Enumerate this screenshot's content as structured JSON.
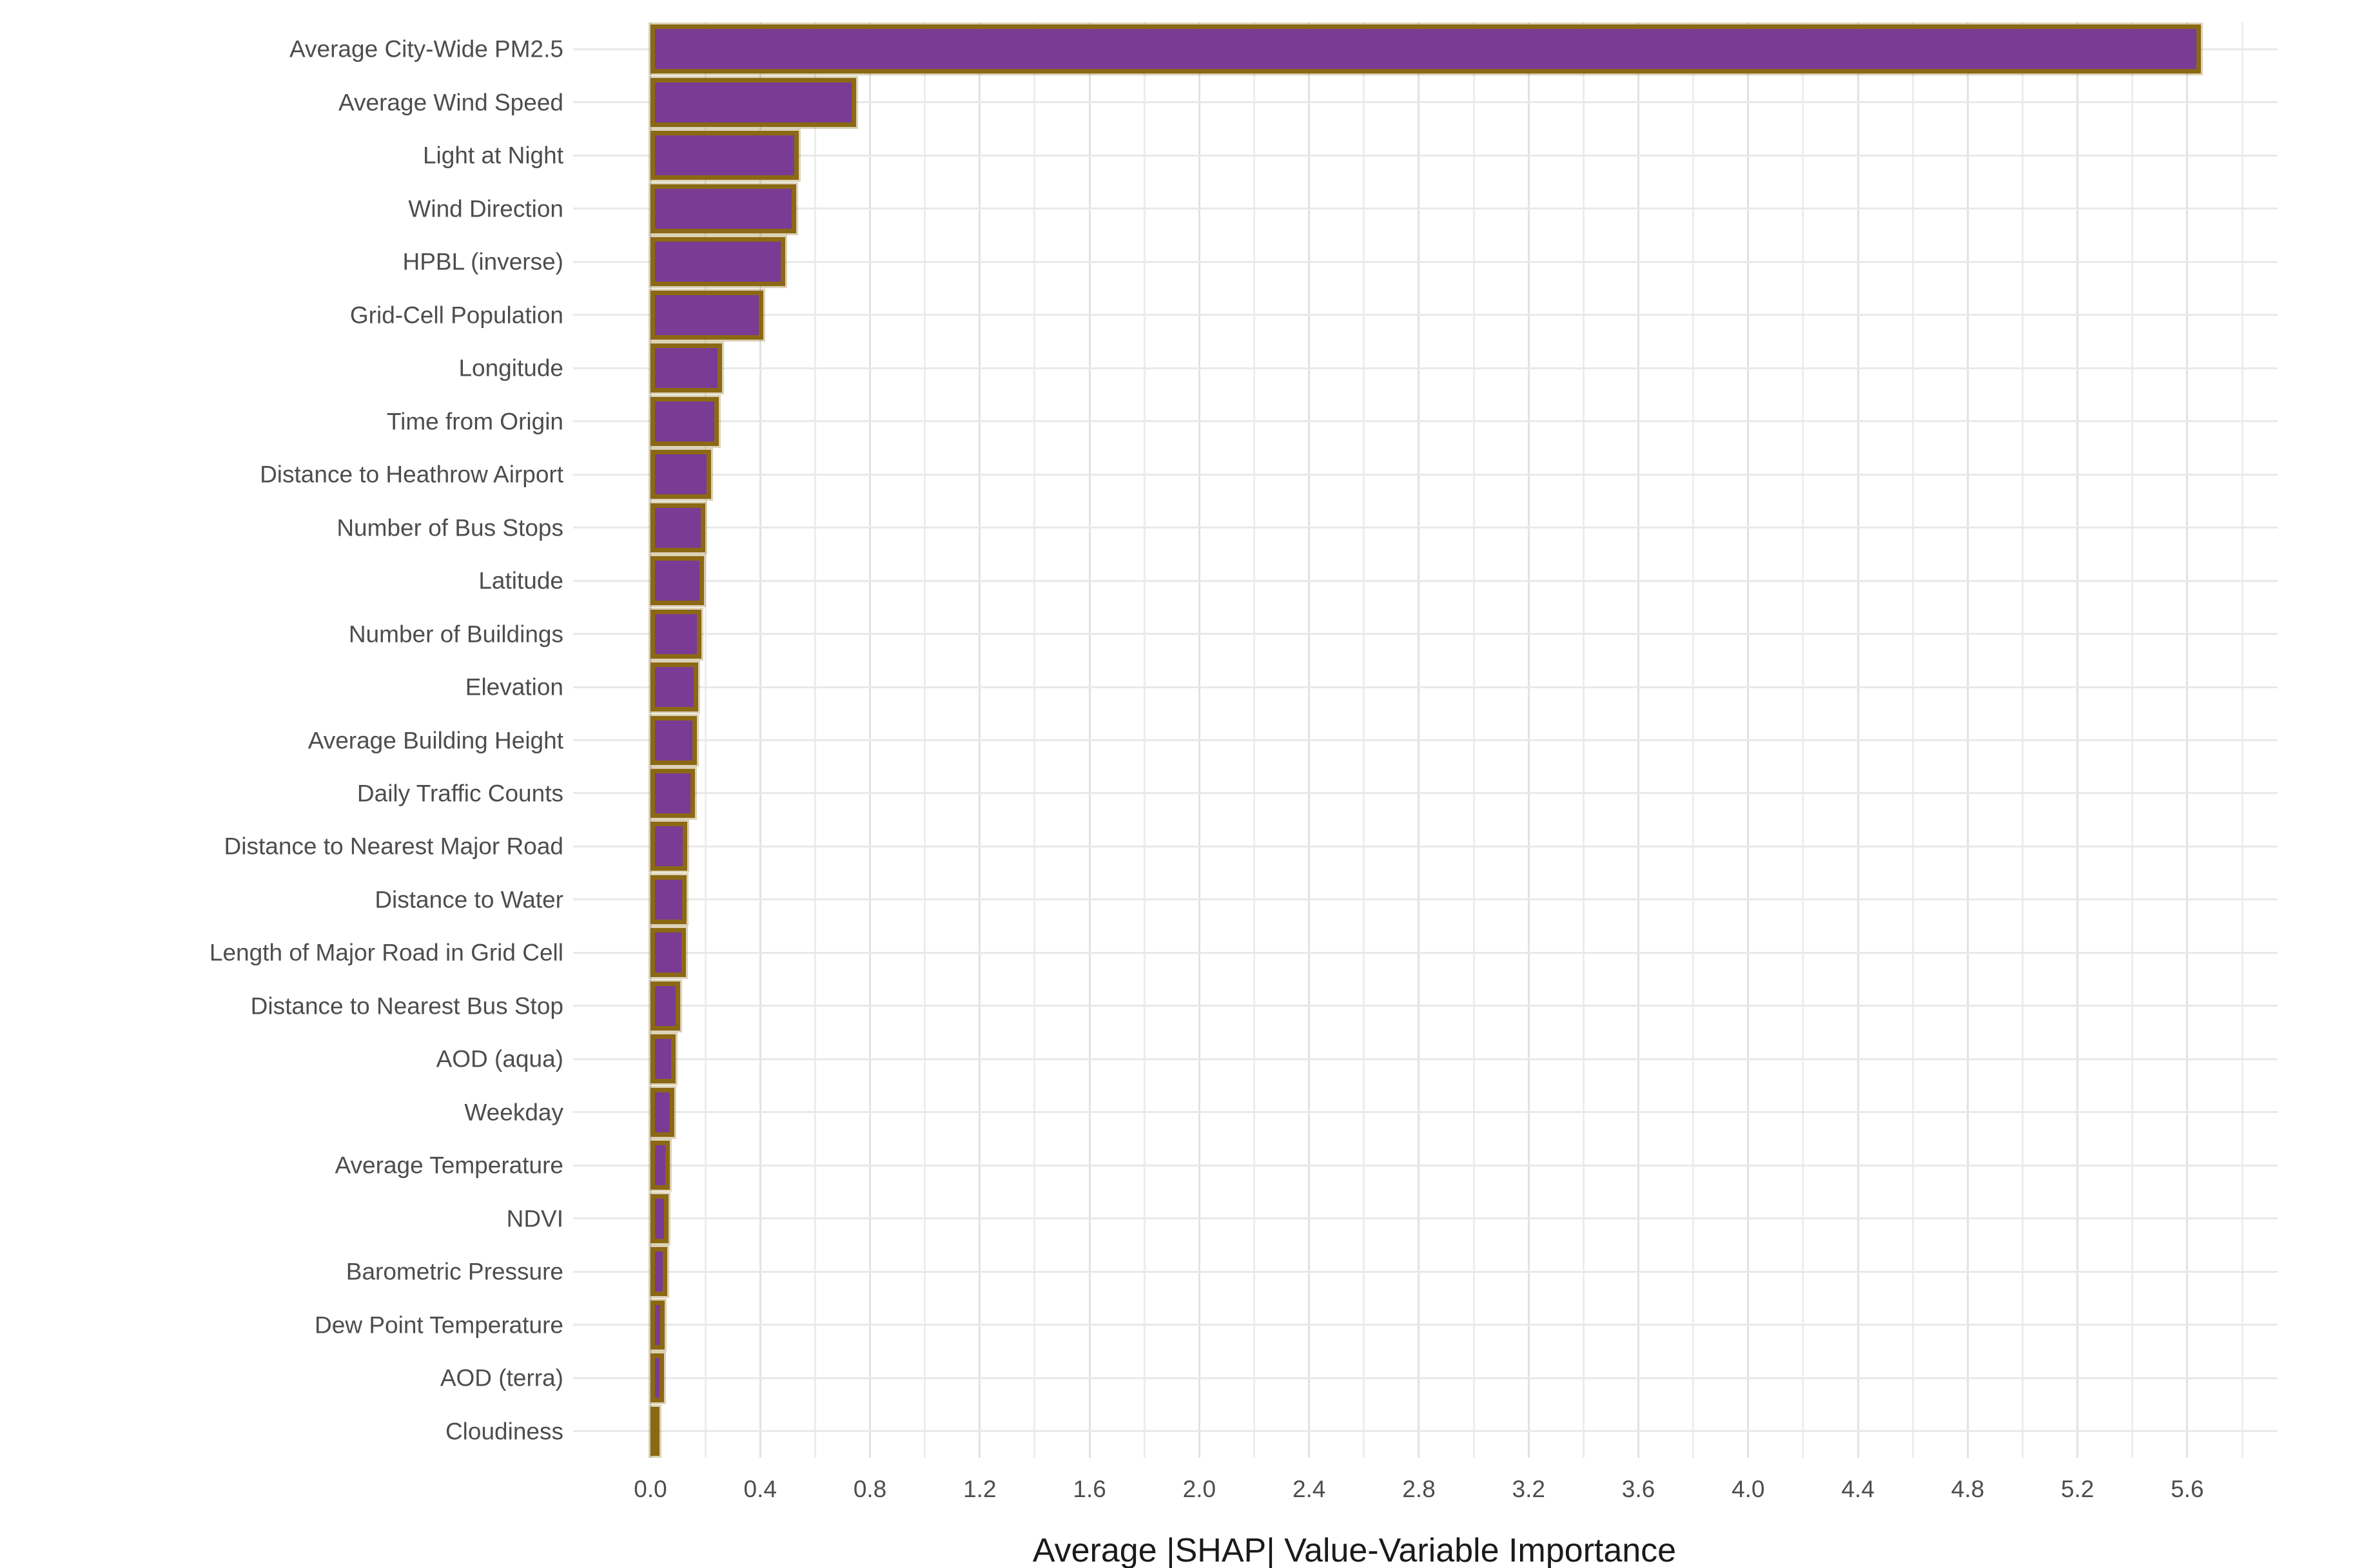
{
  "chart_data": {
    "type": "bar",
    "orientation": "horizontal",
    "title": "",
    "xlabel": "Average |SHAP| Value-Variable Importance",
    "ylabel": "",
    "categories": [
      "Average City-Wide PM2.5",
      "Average Wind Speed",
      "Light at Night",
      "Wind Direction",
      "HPBL (inverse)",
      "Grid-Cell Population",
      "Longitude",
      "Time from Origin",
      "Distance to Heathrow Airport",
      "Number of Bus Stops",
      "Latitude",
      "Number of Buildings",
      "Elevation",
      "Average Building Height",
      "Daily Traffic Counts",
      "Distance to Nearest Major Road",
      "Distance to Water",
      "Length of Major Road in Grid Cell",
      "Distance to Nearest Bus Stop",
      "AOD (aqua)",
      "Weekday",
      "Average Temperature",
      "NDVI",
      "Barometric Pressure",
      "Dew Point Temperature",
      "AOD (terra)",
      "Cloudiness"
    ],
    "values": [
      5.65,
      0.75,
      0.54,
      0.53,
      0.49,
      0.41,
      0.26,
      0.25,
      0.22,
      0.2,
      0.195,
      0.185,
      0.175,
      0.17,
      0.163,
      0.135,
      0.132,
      0.13,
      0.108,
      0.092,
      0.088,
      0.071,
      0.065,
      0.06,
      0.052,
      0.05,
      0.033
    ],
    "x_ticks": [
      "0.0",
      "0.4",
      "0.8",
      "1.2",
      "1.6",
      "2.0",
      "2.4",
      "2.8",
      "3.2",
      "3.6",
      "4.0",
      "4.4",
      "4.8",
      "5.2",
      "5.6"
    ],
    "x_minor_ticks": [
      0.2,
      0.6,
      1.0,
      1.4,
      1.8,
      2.2,
      2.6,
      3.0,
      3.4,
      3.8,
      4.2,
      4.6,
      5.0,
      5.4,
      5.8
    ],
    "xlim": [
      -0.28,
      5.93
    ],
    "grid": "on",
    "legend": "none",
    "colors": {
      "bar_fill": "#7A3B94",
      "bar_border": "#8B6914",
      "grid_major": "#E2E2E2",
      "grid_minor": "#EDEDED",
      "tick_text": "#4D4D4D",
      "label_text": "#4D4D4D",
      "axis_title_text": "#1A1A1A",
      "background": "#FFFFFF"
    }
  }
}
